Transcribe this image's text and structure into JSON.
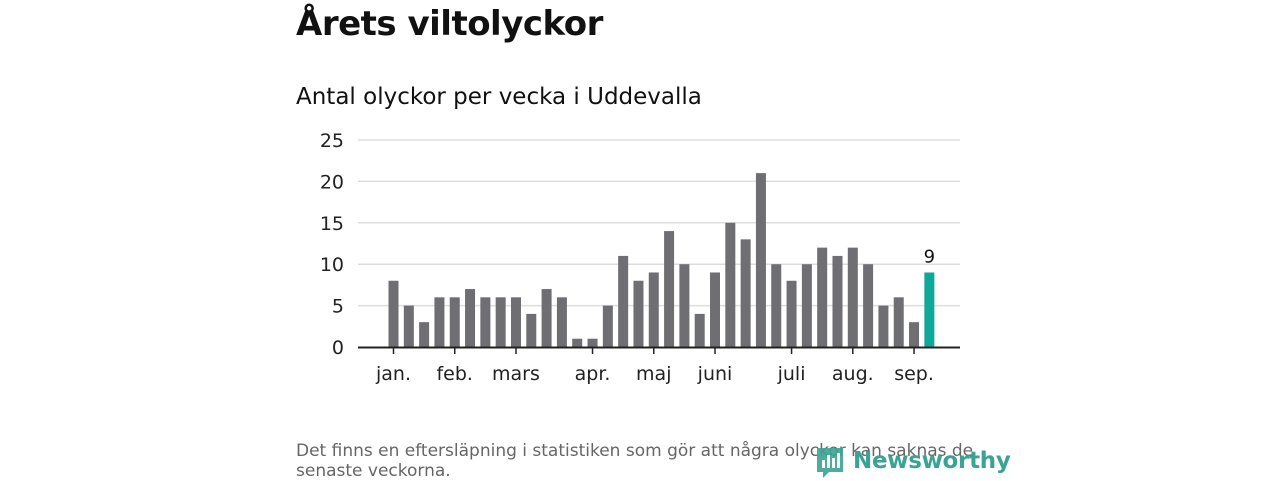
{
  "title": "Årets viltolyckor",
  "subtitle": "Antal olyckor per vecka i Uddevalla",
  "footnote": "Det finns en eftersläpning i statistiken som gör att några olyckor kan saknas de senaste veckorna.",
  "brand": {
    "name": "Newsworthy",
    "color": "#3aa394",
    "icon": "newsworthy-logo-icon"
  },
  "colors": {
    "bar": "#6e6e73",
    "highlight": "#0fa89a",
    "grid": "#dddddd",
    "axis": "#222222"
  },
  "chart_data": {
    "type": "bar",
    "values": [
      8,
      5,
      3,
      6,
      6,
      7,
      6,
      6,
      6,
      4,
      7,
      6,
      1,
      1,
      5,
      11,
      8,
      9,
      14,
      10,
      4,
      9,
      15,
      13,
      21,
      10,
      8,
      10,
      12,
      11,
      12,
      10,
      5,
      6,
      3,
      9
    ],
    "highlight_index": 35,
    "highlight_label": "9",
    "yticks": [
      0,
      5,
      10,
      15,
      20,
      25
    ],
    "ylim": [
      0,
      25
    ],
    "month_labels": [
      {
        "label": "jan.",
        "week_index": 0
      },
      {
        "label": "feb.",
        "week_index": 4
      },
      {
        "label": "mars",
        "week_index": 8
      },
      {
        "label": "apr.",
        "week_index": 13
      },
      {
        "label": "maj",
        "week_index": 17
      },
      {
        "label": "juni",
        "week_index": 21
      },
      {
        "label": "juli",
        "week_index": 26
      },
      {
        "label": "aug.",
        "week_index": 30
      },
      {
        "label": "sep.",
        "week_index": 34
      }
    ],
    "grid": true
  }
}
